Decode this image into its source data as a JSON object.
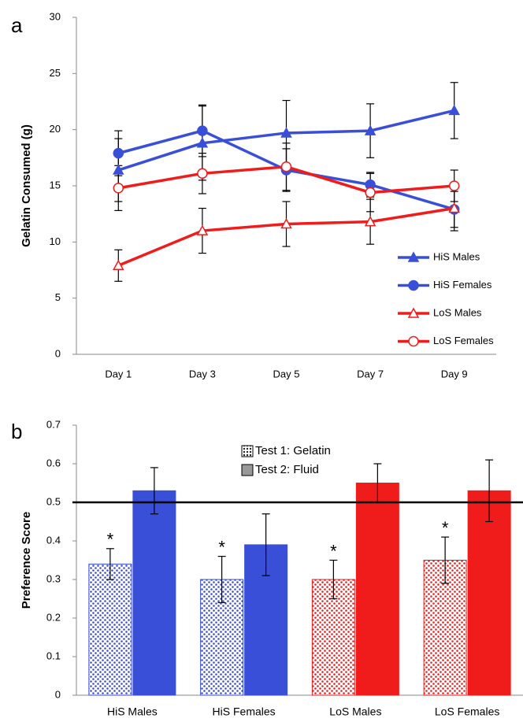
{
  "chart_data": [
    {
      "type": "line",
      "panel_label": "a",
      "ylabel": "Gelatin Consumed (g)",
      "categories": [
        "Day 1",
        "Day 3",
        "Day 5",
        "Day 7",
        "Day 9"
      ],
      "ylim": [
        0,
        30
      ],
      "yticks": [
        0,
        5,
        10,
        15,
        20,
        25,
        30
      ],
      "legend": "lower right",
      "series": [
        {
          "name": "HiS Males",
          "color": "#3a4fd8",
          "marker": "triangle",
          "filled": true,
          "values": [
            16.4,
            18.8,
            19.7,
            19.9,
            21.7
          ],
          "errors": [
            2.8,
            3.3,
            2.9,
            2.4,
            2.5
          ]
        },
        {
          "name": "HiS Females",
          "color": "#3a4fd8",
          "marker": "circle",
          "filled": true,
          "values": [
            17.9,
            19.9,
            16.4,
            15.1,
            12.9
          ],
          "errors": [
            2.0,
            2.3,
            1.9,
            1.1,
            1.6
          ]
        },
        {
          "name": "LoS Males",
          "color": "#f01c1c",
          "marker": "triangle",
          "filled": false,
          "values": [
            7.9,
            11.0,
            11.6,
            11.8,
            13.0
          ],
          "errors": [
            1.4,
            2.0,
            2.0,
            2.0,
            2.0
          ]
        },
        {
          "name": "LoS Females",
          "color": "#f01c1c",
          "marker": "circle",
          "filled": false,
          "values": [
            14.8,
            16.1,
            16.7,
            14.4,
            15.0
          ],
          "errors": [
            2.0,
            1.8,
            2.1,
            1.7,
            1.4
          ]
        }
      ]
    },
    {
      "type": "bar",
      "panel_label": "b",
      "ylabel": "Preference Score",
      "categories": [
        "HiS Males",
        "HiS Females",
        "LoS Males",
        "LoS Females"
      ],
      "category_colors": [
        "#3a4fd8",
        "#3a4fd8",
        "#f01c1c",
        "#f01c1c"
      ],
      "ylim": [
        0,
        0.7
      ],
      "yticks": [
        0,
        0.1,
        0.2,
        0.3,
        0.4,
        0.5,
        0.6,
        0.7
      ],
      "reference_line": 0.5,
      "legend": "upper center",
      "series": [
        {
          "name": "Test 1: Gelatin",
          "color": "#444444",
          "pattern": "dots",
          "values": [
            0.34,
            0.3,
            0.3,
            0.35
          ],
          "errors": [
            0.04,
            0.06,
            0.05,
            0.06
          ],
          "marks": [
            "*",
            "*",
            "*",
            "*"
          ]
        },
        {
          "name": "Test 2: Fluid",
          "color": "#999999",
          "pattern": "solid",
          "values": [
            0.53,
            0.39,
            0.55,
            0.53
          ],
          "errors": [
            0.06,
            0.08,
            0.05,
            0.08
          ]
        }
      ]
    }
  ]
}
